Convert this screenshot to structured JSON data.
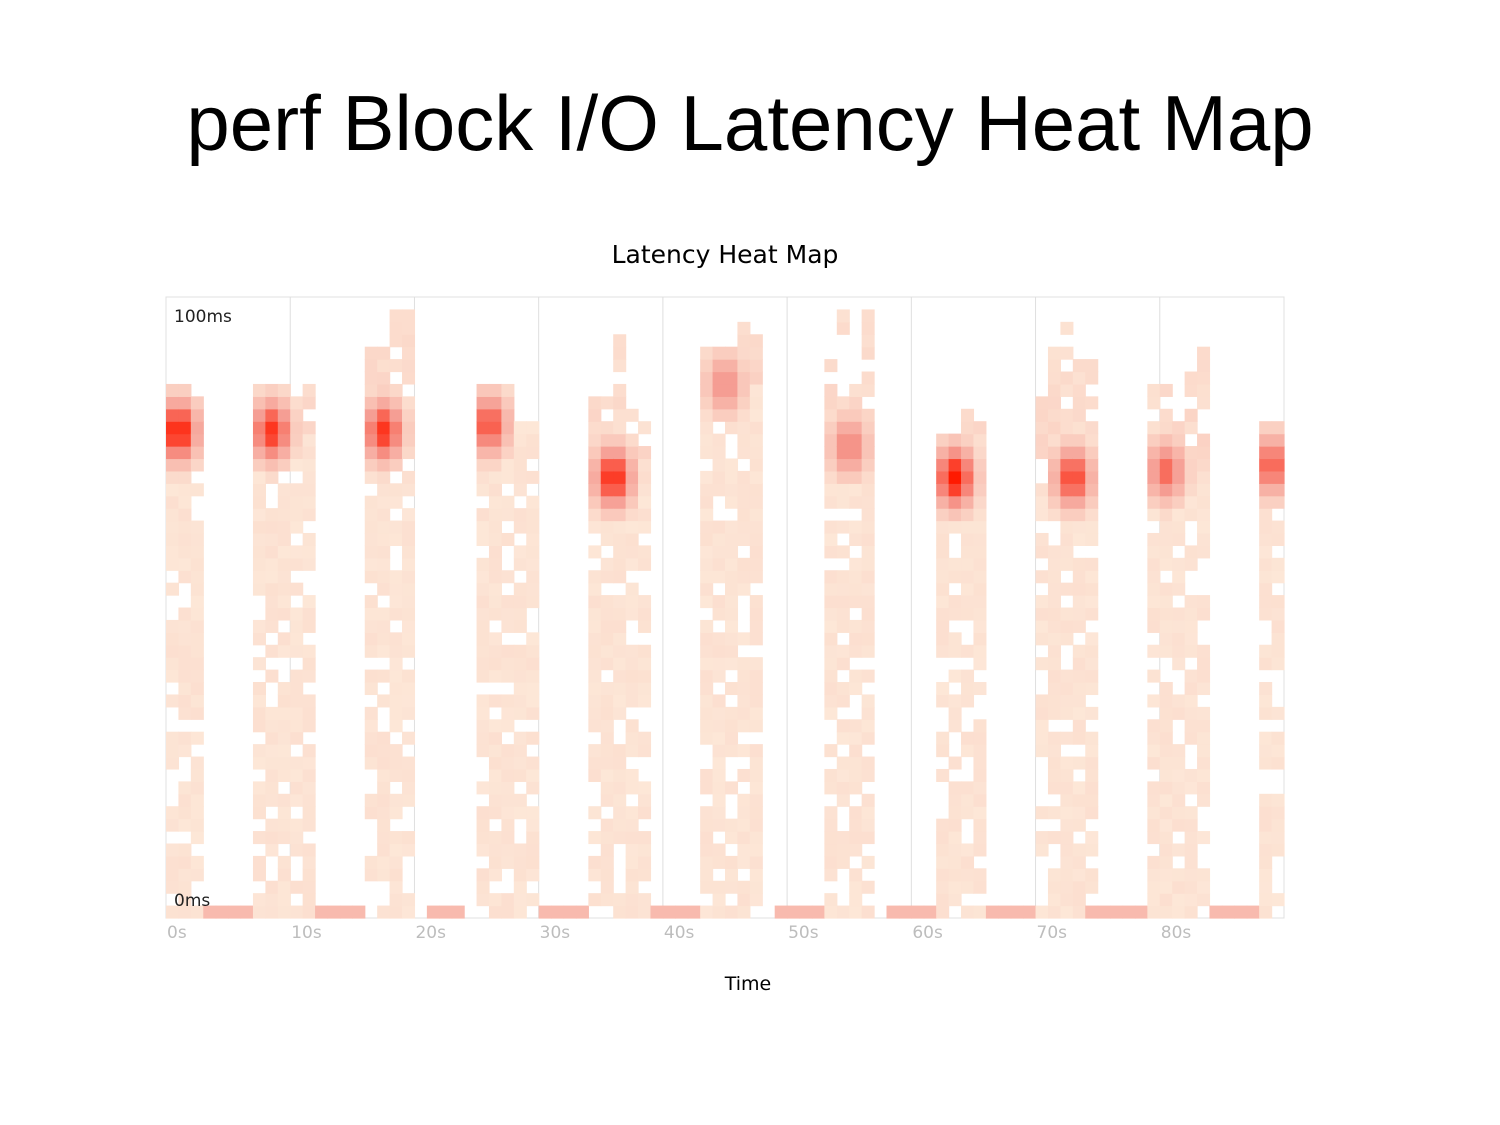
{
  "slide": {
    "title": "perf Block I/O Latency Heat Map"
  },
  "chart_data": {
    "type": "heatmap",
    "title": "Latency Heat Map",
    "xlabel": "Time",
    "ylabel": "",
    "x_unit": "s",
    "y_unit": "ms",
    "xlim": [
      0,
      90
    ],
    "ylim": [
      0,
      100
    ],
    "x_ticks": [
      "0s",
      "10s",
      "20s",
      "30s",
      "40s",
      "50s",
      "60s",
      "70s",
      "80s"
    ],
    "y_labels": {
      "top": "100ms",
      "bottom": "0ms"
    },
    "column_width_s": 1,
    "row_height_ms": 2,
    "grid": true,
    "color_scale": {
      "low": "#fdeada",
      "mid": "#f59a90",
      "high": "#ff1a00"
    },
    "bursts": [
      {
        "x_start_s": 0,
        "x_end_s": 3,
        "peak_s": 1,
        "peak_ms": 78.5,
        "peak_intensity": 1.0,
        "top_ms": 92
      },
      {
        "x_start_s": 7,
        "x_end_s": 12,
        "peak_s": 8.5,
        "peak_ms": 78.5,
        "peak_intensity": 0.9,
        "top_ms": 88
      },
      {
        "x_start_s": 16,
        "x_end_s": 20,
        "peak_s": 17.5,
        "peak_ms": 78.5,
        "peak_intensity": 0.9,
        "top_ms": 100
      },
      {
        "x_start_s": 25,
        "x_end_s": 30,
        "peak_s": 26,
        "peak_ms": 79.5,
        "peak_intensity": 0.8,
        "top_ms": 91
      },
      {
        "x_start_s": 34,
        "x_end_s": 39,
        "peak_s": 36,
        "peak_ms": 71,
        "peak_intensity": 0.95,
        "top_ms": 94
      },
      {
        "x_start_s": 43,
        "x_end_s": 48,
        "peak_s": 45,
        "peak_ms": 86,
        "peak_intensity": 0.55,
        "top_ms": 100
      },
      {
        "x_start_s": 53,
        "x_end_s": 57,
        "peak_s": 55,
        "peak_ms": 76,
        "peak_intensity": 0.6,
        "top_ms": 100
      },
      {
        "x_start_s": 62,
        "x_end_s": 66,
        "peak_s": 63.5,
        "peak_ms": 71,
        "peak_intensity": 1.0,
        "top_ms": 86
      },
      {
        "x_start_s": 70,
        "x_end_s": 75,
        "peak_s": 73,
        "peak_ms": 71,
        "peak_intensity": 0.85,
        "top_ms": 96
      },
      {
        "x_start_s": 79,
        "x_end_s": 84,
        "peak_s": 80.5,
        "peak_ms": 72,
        "peak_intensity": 0.7,
        "top_ms": 94
      },
      {
        "x_start_s": 88,
        "x_end_s": 90,
        "peak_s": 89,
        "peak_ms": 73,
        "peak_intensity": 0.75,
        "top_ms": 86
      }
    ],
    "baseline_clusters": [
      {
        "x_start_s": 3,
        "x_end_s": 7,
        "ms": 1,
        "intensity": 0.3
      },
      {
        "x_start_s": 12,
        "x_end_s": 16,
        "ms": 1,
        "intensity": 0.3
      },
      {
        "x_start_s": 21,
        "x_end_s": 24,
        "ms": 1,
        "intensity": 0.3
      },
      {
        "x_start_s": 30,
        "x_end_s": 34,
        "ms": 1,
        "intensity": 0.3
      },
      {
        "x_start_s": 39,
        "x_end_s": 43,
        "ms": 1,
        "intensity": 0.3
      },
      {
        "x_start_s": 49,
        "x_end_s": 53,
        "ms": 1,
        "intensity": 0.3
      },
      {
        "x_start_s": 58,
        "x_end_s": 62,
        "ms": 1,
        "intensity": 0.3
      },
      {
        "x_start_s": 66,
        "x_end_s": 70,
        "ms": 1,
        "intensity": 0.3
      },
      {
        "x_start_s": 74,
        "x_end_s": 79,
        "ms": 1,
        "intensity": 0.3
      },
      {
        "x_start_s": 84,
        "x_end_s": 88,
        "ms": 1,
        "intensity": 0.3
      }
    ]
  }
}
